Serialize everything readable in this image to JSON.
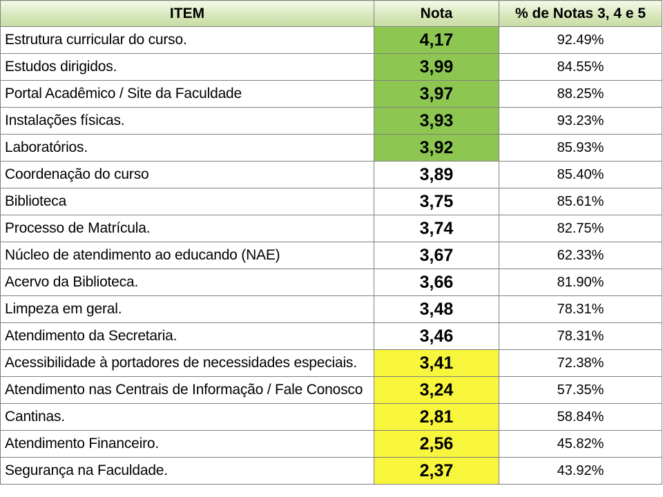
{
  "headers": {
    "item": "ITEM",
    "nota": "Nota",
    "pct": "% de Notas 3, 4 e 5"
  },
  "highlight_colors": {
    "green": "#8dc752",
    "yellow": "#f7f53c",
    "header": "#d9e8bd"
  },
  "rows": [
    {
      "item": "Estrutura curricular do curso.",
      "nota": "4,17",
      "pct": "92.49%",
      "highlight": "green"
    },
    {
      "item": "Estudos dirigidos.",
      "nota": "3,99",
      "pct": "84.55%",
      "highlight": "green"
    },
    {
      "item": "Portal Acadêmico / Site da Faculdade",
      "nota": "3,97",
      "pct": "88.25%",
      "highlight": "green"
    },
    {
      "item": "Instalações físicas.",
      "nota": "3,93",
      "pct": "93.23%",
      "highlight": "green"
    },
    {
      "item": "Laboratórios.",
      "nota": "3,92",
      "pct": "85.93%",
      "highlight": "green"
    },
    {
      "item": "Coordenação do curso",
      "nota": "3,89",
      "pct": "85.40%",
      "highlight": "none"
    },
    {
      "item": "Biblioteca",
      "nota": "3,75",
      "pct": "85.61%",
      "highlight": "none"
    },
    {
      "item": "Processo de Matrícula.",
      "nota": "3,74",
      "pct": "82.75%",
      "highlight": "none"
    },
    {
      "item": "Núcleo de atendimento ao educando (NAE)",
      "nota": "3,67",
      "pct": "62.33%",
      "highlight": "none"
    },
    {
      "item": "Acervo da Biblioteca.",
      "nota": "3,66",
      "pct": "81.90%",
      "highlight": "none"
    },
    {
      "item": "Limpeza em geral.",
      "nota": "3,48",
      "pct": "78.31%",
      "highlight": "none"
    },
    {
      "item": "Atendimento da Secretaria.",
      "nota": "3,46",
      "pct": "78.31%",
      "highlight": "none"
    },
    {
      "item": "Acessibilidade à portadores de necessidades especiais.",
      "nota": "3,41",
      "pct": "72.38%",
      "highlight": "yellow"
    },
    {
      "item": "Atendimento nas Centrais de Informação / Fale Conosco",
      "nota": "3,24",
      "pct": "57.35%",
      "highlight": "yellow"
    },
    {
      "item": "Cantinas.",
      "nota": "2,81",
      "pct": "58.84%",
      "highlight": "yellow"
    },
    {
      "item": "Atendimento Financeiro.",
      "nota": "2,56",
      "pct": "45.82%",
      "highlight": "yellow"
    },
    {
      "item": "Segurança na Faculdade.",
      "nota": "2,37",
      "pct": "43.92%",
      "highlight": "yellow"
    }
  ]
}
